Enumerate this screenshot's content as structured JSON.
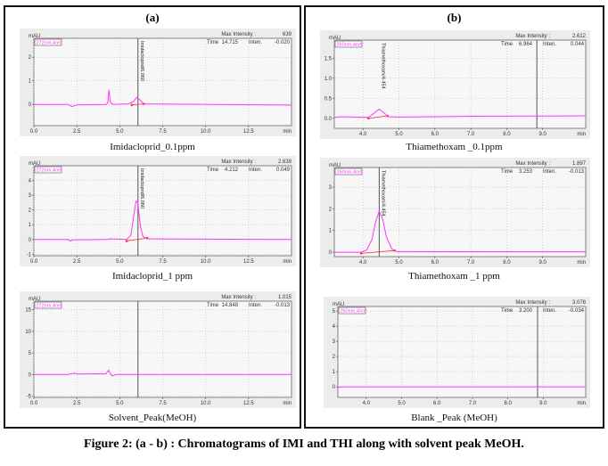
{
  "panels": {
    "a": {
      "title": "(a)"
    },
    "b": {
      "title": "(b)"
    }
  },
  "caption": "Figure 2: (a - b) : Chromatograms of IMI and THI along with solvent peak MeOH.",
  "trace_color": "#ff33ff",
  "baseline_color": "#ff3333",
  "chart_data": [
    {
      "id": "a1",
      "type": "line",
      "title": "Imidacloprid_0.1ppm",
      "ylabel": "mAU",
      "xlabel": "min",
      "channel": "272nm,4nm",
      "max_intensity_label": "Max Intensity :",
      "max_intensity": "639",
      "time_label": "Time",
      "time": "14.715",
      "inten_label": "Inten.",
      "inten": "-0.020",
      "xlim": [
        0,
        15
      ],
      "ylim": [
        -0.9,
        2.8
      ],
      "xticks": [
        "0.0",
        "2.5",
        "5.0",
        "7.5",
        "10.0",
        "12.5"
      ],
      "yticks": [
        "0",
        "1",
        "2"
      ],
      "cursor_x": 6.06,
      "peak_label": "Imidacloprid/6.060",
      "peak_x": 6.06,
      "baseline": [
        [
          5.7,
          -0.02
        ],
        [
          6.4,
          0.02
        ]
      ],
      "x": [
        0,
        2.0,
        2.1,
        2.25,
        2.5,
        4.2,
        4.3,
        4.37,
        4.45,
        4.6,
        5.5,
        5.8,
        6.0,
        6.15,
        6.4,
        15
      ],
      "y": [
        0,
        0,
        -0.05,
        -0.09,
        -0.02,
        0,
        0.05,
        0.62,
        0.1,
        0,
        0.02,
        0.12,
        0.3,
        0.2,
        0.02,
        -0.03
      ]
    },
    {
      "id": "a2",
      "type": "line",
      "title": "Imidacloprid_1 ppm",
      "ylabel": "mAU",
      "xlabel": "min",
      "channel": "272nm,4nm",
      "max_intensity_label": "Max Intensity :",
      "max_intensity": "2.639",
      "time_label": "Time",
      "time": "4.212",
      "inten_label": "Inten.",
      "inten": "0.049",
      "xlim": [
        0,
        15
      ],
      "ylim": [
        -1.1,
        5
      ],
      "xticks": [
        "0.0",
        "2.5",
        "5.0",
        "7.5",
        "10.0",
        "12.5"
      ],
      "yticks": [
        "-1",
        "0",
        "1",
        "2",
        "3",
        "4"
      ],
      "cursor_x": 6.06,
      "peak_label": "Imidacloprid/6.060",
      "peak_x": 6.06,
      "baseline": [
        [
          5.4,
          -0.1
        ],
        [
          6.6,
          0.1
        ]
      ],
      "x": [
        0,
        2.0,
        2.1,
        2.3,
        4.3,
        4.4,
        5.4,
        5.65,
        5.8,
        5.95,
        6.05,
        6.1,
        6.2,
        6.35,
        6.6,
        15
      ],
      "y": [
        0,
        0,
        -0.1,
        -0.02,
        0,
        0.05,
        0,
        0.3,
        1.5,
        2.6,
        2.5,
        2.0,
        0.9,
        0.2,
        0.05,
        0
      ]
    },
    {
      "id": "a3",
      "type": "line",
      "title": "Solvent_Peak(MeOH)",
      "ylabel": "mAU",
      "xlabel": "min",
      "channel": "272nm,4nm",
      "max_intensity_label": "Max Intensity :",
      "max_intensity": "1.015",
      "time_label": "Time",
      "time": "14.848",
      "inten_label": "Inten.",
      "inten": "-0.013",
      "xlim": [
        0,
        15
      ],
      "ylim": [
        -5.3,
        17
      ],
      "xticks": [
        "0.0",
        "2.5",
        "5.0",
        "7.5",
        "10.0",
        "12.5"
      ],
      "yticks": [
        "-5",
        "0",
        "5",
        "10",
        "15"
      ],
      "cursor_x": 6.06,
      "peak_label": "",
      "peak_x": null,
      "baseline": null,
      "x": [
        0,
        2.0,
        2.3,
        2.6,
        4.2,
        4.35,
        4.45,
        4.55,
        4.8,
        15
      ],
      "y": [
        0,
        0,
        0.3,
        0.1,
        0.2,
        1.0,
        0.2,
        -0.3,
        0,
        0
      ]
    },
    {
      "id": "b1",
      "type": "line",
      "title": "Thiamethoxam _0.1ppm",
      "ylabel": "mAU",
      "xlabel": "min",
      "channel": "260nm,4nm",
      "max_intensity_label": "Max Intensity :",
      "max_intensity": "2.612",
      "time_label": "Time",
      "time": "6.964",
      "inten_label": "Inten.",
      "inten": "0.044",
      "xlim": [
        3.2,
        10.2
      ],
      "ylim": [
        -0.25,
        1.95
      ],
      "xticks": [
        "4.0",
        "5.0",
        "6.0",
        "7.0",
        "8.0",
        "9.0"
      ],
      "yticks": [
        "0.0",
        "0.5",
        "1.0",
        "1.5"
      ],
      "cursor_x": 8.84,
      "peak_label": "Thiamethoxam/4.454",
      "peak_x": 4.45,
      "baseline": [
        [
          4.15,
          0.0
        ],
        [
          4.68,
          0.06
        ]
      ],
      "x": [
        3.2,
        3.4,
        4.15,
        4.3,
        4.45,
        4.6,
        4.7,
        5.0,
        7.0,
        10.2
      ],
      "y": [
        0.02,
        0.04,
        0.02,
        0.12,
        0.23,
        0.12,
        0.04,
        0.03,
        0.05,
        0.06
      ]
    },
    {
      "id": "b2",
      "type": "line",
      "title": "Thiamethoxam _1 ppm",
      "ylabel": "mAU",
      "xlabel": "min",
      "channel": "260nm,4nm",
      "max_intensity_label": "Max Intensity :",
      "max_intensity": "1.897",
      "time_label": "Time",
      "time": "3.253",
      "inten_label": "Inten.",
      "inten": "-0.013",
      "xlim": [
        3.2,
        10.2
      ],
      "ylim": [
        -0.2,
        3.9
      ],
      "xticks": [
        "4.0",
        "5.0",
        "6.0",
        "7.0",
        "8.0",
        "9.0"
      ],
      "yticks": [
        "0",
        "1",
        "2",
        "3"
      ],
      "cursor_x": 4.45,
      "peak_label": "Thiamethoxam/4.454",
      "peak_x": 4.45,
      "baseline": [
        [
          3.95,
          -0.05
        ],
        [
          4.88,
          0.08
        ]
      ],
      "x": [
        3.2,
        3.95,
        4.1,
        4.25,
        4.35,
        4.45,
        4.55,
        4.65,
        4.8,
        4.95,
        10.2
      ],
      "y": [
        0,
        0,
        0.1,
        0.6,
        1.4,
        1.9,
        1.5,
        0.7,
        0.15,
        0.03,
        0.02
      ]
    },
    {
      "id": "b3",
      "type": "line",
      "title": "Blank _Peak (MeOH)",
      "ylabel": "mAU",
      "xlabel": "min",
      "channel": "260nm,4nm",
      "max_intensity_label": "Max Intensity :",
      "max_intensity": "3.078",
      "time_label": "Time",
      "time": "3.200",
      "inten_label": "Inten.",
      "inten": "-0.034",
      "xlim": [
        3.2,
        10.2
      ],
      "ylim": [
        -0.7,
        5.3
      ],
      "xticks": [
        "4.0",
        "5.0",
        "6.0",
        "7.0",
        "8.0",
        "9.0"
      ],
      "yticks": [
        "0",
        "1",
        "2",
        "3",
        "4",
        "5"
      ],
      "cursor_x": 8.84,
      "peak_label": "",
      "peak_x": null,
      "baseline": null,
      "x": [
        3.2,
        3.3,
        10.2
      ],
      "y": [
        -0.05,
        0,
        0
      ]
    }
  ]
}
